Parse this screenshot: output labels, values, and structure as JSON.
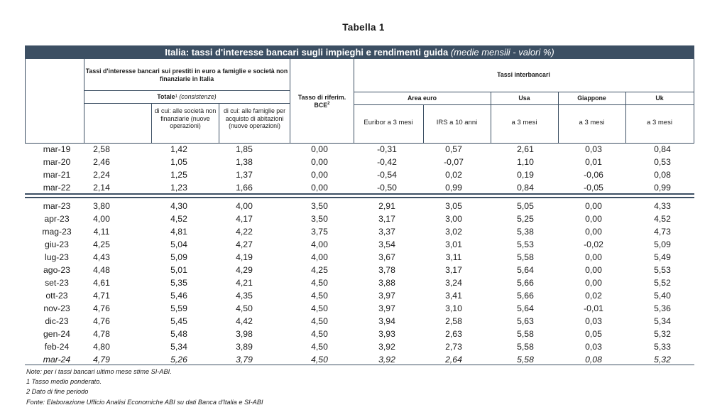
{
  "page_title": "Tabella 1",
  "table_title": "Italia: tassi d'interesse bancari sugli impieghi e rendimenti guida",
  "table_subtitle": "(medie mensili - valori %)",
  "headers": {
    "bank_rates_group": "Tassi d'interesse bancari sui prestiti in euro a famiglie e società non finanziarie in Italia",
    "totale_label": "Totale",
    "totale_sup": "1",
    "totale_note": "(consistenze)",
    "companies": "di cui: alle società non finanziarie (nuove operazioni)",
    "households": "di cui: alle famiglie per acquisto di abitazioni (nuove operazioni)",
    "bce_label": "Tasso di riferim. BCE",
    "bce_sup": "2",
    "interbank_group": "Tassi interbancari",
    "area_euro": "Area euro",
    "usa": "Usa",
    "giappone": "Giappone",
    "uk": "Uk",
    "euribor": "Euribor a 3 mesi",
    "irs": "IRS a 10 anni",
    "usa_sub": "a 3 mesi",
    "giappone_sub": "a 3 mesi",
    "uk_sub": "a 3 mesi"
  },
  "rows_annual": [
    [
      "mar-19",
      "2,58",
      "1,42",
      "1,85",
      "0,00",
      "-0,31",
      "0,57",
      "2,61",
      "0,03",
      "0,84"
    ],
    [
      "mar-20",
      "2,46",
      "1,05",
      "1,38",
      "0,00",
      "-0,42",
      "-0,07",
      "1,10",
      "0,01",
      "0,53"
    ],
    [
      "mar-21",
      "2,24",
      "1,25",
      "1,37",
      "0,00",
      "-0,54",
      "0,02",
      "0,19",
      "-0,06",
      "0,08"
    ],
    [
      "mar-22",
      "2,14",
      "1,23",
      "1,66",
      "0,00",
      "-0,50",
      "0,99",
      "0,84",
      "-0,05",
      "0,99"
    ]
  ],
  "rows_monthly": [
    [
      "mar-23",
      "3,80",
      "4,30",
      "4,00",
      "3,50",
      "2,91",
      "3,05",
      "5,05",
      "0,00",
      "4,33"
    ],
    [
      "apr-23",
      "4,00",
      "4,52",
      "4,17",
      "3,50",
      "3,17",
      "3,00",
      "5,25",
      "0,00",
      "4,52"
    ],
    [
      "mag-23",
      "4,11",
      "4,81",
      "4,22",
      "3,75",
      "3,37",
      "3,02",
      "5,38",
      "0,00",
      "4,73"
    ],
    [
      "giu-23",
      "4,25",
      "5,04",
      "4,27",
      "4,00",
      "3,54",
      "3,01",
      "5,53",
      "-0,02",
      "5,09"
    ],
    [
      "lug-23",
      "4,43",
      "5,09",
      "4,19",
      "4,00",
      "3,67",
      "3,11",
      "5,58",
      "0,00",
      "5,49"
    ],
    [
      "ago-23",
      "4,48",
      "5,01",
      "4,29",
      "4,25",
      "3,78",
      "3,17",
      "5,64",
      "0,00",
      "5,53"
    ],
    [
      "set-23",
      "4,61",
      "5,35",
      "4,21",
      "4,50",
      "3,88",
      "3,24",
      "5,66",
      "0,00",
      "5,52"
    ],
    [
      "ott-23",
      "4,71",
      "5,46",
      "4,35",
      "4,50",
      "3,97",
      "3,41",
      "5,66",
      "0,02",
      "5,40"
    ],
    [
      "nov-23",
      "4,76",
      "5,59",
      "4,50",
      "4,50",
      "3,97",
      "3,10",
      "5,64",
      "-0,01",
      "5,36"
    ],
    [
      "dic-23",
      "4,76",
      "5,45",
      "4,42",
      "4,50",
      "3,94",
      "2,58",
      "5,63",
      "0,03",
      "5,34"
    ],
    [
      "gen-24",
      "4,78",
      "5,48",
      "3,98",
      "4,50",
      "3,93",
      "2,63",
      "5,58",
      "0,05",
      "5,32"
    ],
    [
      "feb-24",
      "4,80",
      "5,34",
      "3,89",
      "4,50",
      "3,92",
      "2,73",
      "5,58",
      "0,03",
      "5,33"
    ],
    [
      "mar-24",
      "4,79",
      "5,26",
      "3,79",
      "4,50",
      "3,92",
      "2,64",
      "5,58",
      "0,08",
      "5,32"
    ]
  ],
  "notes": [
    "Note: per i tassi bancari ultimo mese stime SI-ABI.",
    "1 Tasso medio ponderato.",
    "2 Dato di fine periodo",
    "Fonte: Elaborazione Ufficio Analisi Economiche ABI su dati Banca d'Italia e SI-ABI"
  ]
}
